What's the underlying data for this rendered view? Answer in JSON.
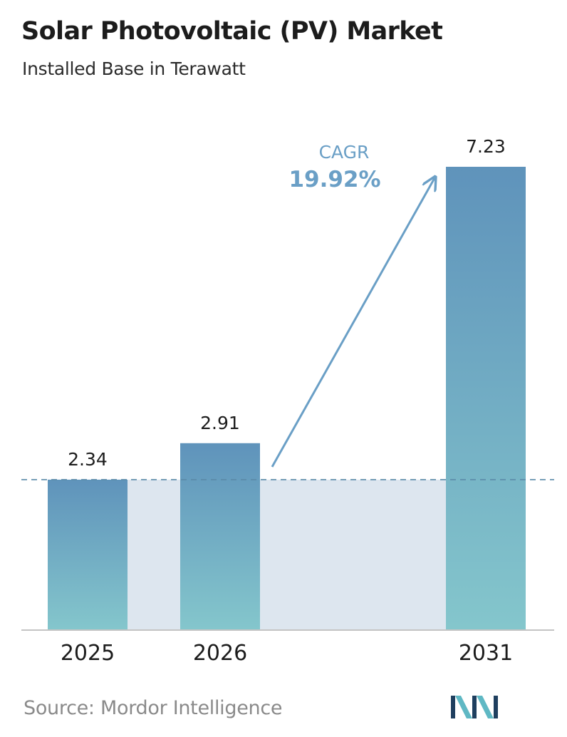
{
  "header": {
    "title": "Solar Photovoltaic (PV) Market",
    "subtitle": "Installed Base in Terawatt"
  },
  "cagr": {
    "label": "CAGR",
    "value": "19.92%"
  },
  "source": "Source:  Mordor Intelligence",
  "colors": {
    "bar_top": "#5f93bb",
    "bar_bottom": "#84c6cc",
    "band": "#dde6ef",
    "cagr": "#6a9fc6",
    "baseline": "#c4c4c4",
    "dashed": "#5a8aa8",
    "logo_dark": "#1f3f5f",
    "logo_light": "#5fb8c4"
  },
  "logo": {
    "name": "mordor-intelligence-logo-icon"
  },
  "chart_data": {
    "type": "bar",
    "categories": [
      "2025",
      "2026",
      "2031"
    ],
    "values": [
      2.34,
      2.91,
      7.23
    ],
    "value_labels": [
      "2.34",
      "2.91",
      "7.23"
    ],
    "title": "Solar Photovoltaic (PV) Market",
    "subtitle": "Installed Base in Terawatt",
    "ylim": [
      0,
      7.23
    ],
    "grid": false,
    "annotation": "CAGR 19.92%"
  }
}
